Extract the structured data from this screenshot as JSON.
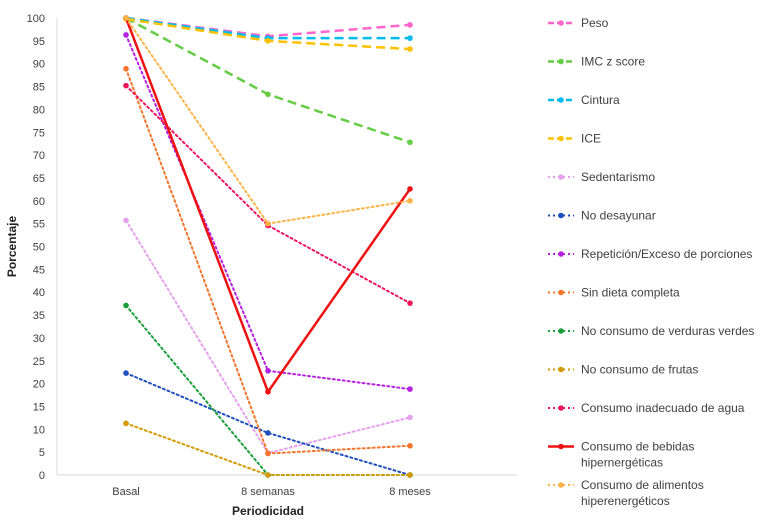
{
  "chart_data": {
    "type": "line",
    "title": "",
    "xlabel": "Periodicidad",
    "ylabel": "Porcentaje",
    "ylim": [
      0,
      100
    ],
    "yticks": [
      0,
      5,
      10,
      15,
      20,
      25,
      30,
      35,
      40,
      45,
      50,
      55,
      60,
      65,
      70,
      75,
      80,
      85,
      90,
      95,
      100
    ],
    "categories": [
      "Basal",
      "8 semanas",
      "8 meses"
    ],
    "grid": false,
    "legend_position": "right",
    "series": [
      {
        "name": "Peso",
        "values": [
          100,
          96,
          98.5
        ],
        "color": "#ff66cc",
        "dash": "dashed",
        "width": "thick"
      },
      {
        "name": "IMC z score",
        "values": [
          100,
          83.3,
          72.8
        ],
        "color": "#66cc44",
        "dash": "dashed",
        "width": "thick"
      },
      {
        "name": "Cintura",
        "values": [
          100,
          95.6,
          95.6
        ],
        "color": "#00bbee",
        "dash": "dashed",
        "width": "thick"
      },
      {
        "name": "ICE",
        "values": [
          99.8,
          95,
          93.2
        ],
        "color": "#ffc000",
        "dash": "dashed",
        "width": "thick"
      },
      {
        "name": "Sedentarismo",
        "values": [
          55.7,
          4.8,
          12.6
        ],
        "color": "#e6a0ee",
        "dash": "dotted",
        "width": "normal"
      },
      {
        "name": "No desayunar",
        "values": [
          22.3,
          9.2,
          0
        ],
        "color": "#1f4fbf",
        "dash": "dotted",
        "width": "normal"
      },
      {
        "name": "Repetición/Exceso de porciones",
        "values": [
          96.3,
          22.8,
          18.8
        ],
        "color": "#b620e0",
        "dash": "dotted",
        "width": "normal"
      },
      {
        "name": "Sin dieta completa",
        "values": [
          88.9,
          4.7,
          6.4
        ],
        "color": "#f4742a",
        "dash": "dotted",
        "width": "normal"
      },
      {
        "name": "No consumo de verduras verdes",
        "values": [
          37.1,
          0,
          0
        ],
        "color": "#1a9e3a",
        "dash": "dotted",
        "width": "normal"
      },
      {
        "name": "No consumo de frutas",
        "values": [
          11.3,
          0,
          0
        ],
        "color": "#d49a00",
        "dash": "dotted",
        "width": "normal"
      },
      {
        "name": "Consumo inadecuado de agua",
        "values": [
          85.2,
          54.6,
          37.6
        ],
        "color": "#f0145a",
        "dash": "dotted",
        "width": "normal"
      },
      {
        "name": "Consumo de bebidas hipernergéticas",
        "values": [
          100,
          18.2,
          62.6
        ],
        "color": "#ee1111",
        "dash": "solid",
        "width": "thicker"
      },
      {
        "name": "Consumo de alimentos hiperenergéticos",
        "values": [
          100,
          55,
          60
        ],
        "color": "#ffb347",
        "dash": "dotted",
        "width": "normal"
      }
    ]
  }
}
